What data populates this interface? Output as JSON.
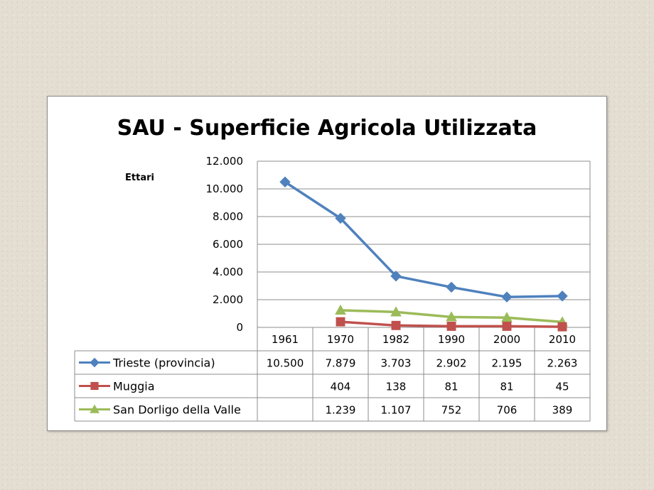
{
  "chart_data": {
    "type": "line",
    "title": "SAU - Superficie Agricola Utilizzata",
    "ylabel": "Ettari",
    "xlabel": "",
    "categories": [
      "1961",
      "1970",
      "1982",
      "1990",
      "2000",
      "2010"
    ],
    "ylim": [
      0,
      12000
    ],
    "yticks": [
      0,
      2000,
      4000,
      6000,
      8000,
      10000,
      12000
    ],
    "ytick_labels": [
      "0",
      "2.000",
      "4.000",
      "6.000",
      "8.000",
      "10.000",
      "12.000"
    ],
    "grid": true,
    "legend": "data-table",
    "series": [
      {
        "name": "Trieste (provincia)",
        "color": "#4f81bd",
        "marker": "diamond",
        "values": [
          10500,
          7879,
          3703,
          2902,
          2195,
          2263
        ],
        "labels": [
          "10.500",
          "7.879",
          "3.703",
          "2.902",
          "2.195",
          "2.263"
        ]
      },
      {
        "name": "Muggia",
        "color": "#c0504d",
        "marker": "square",
        "values": [
          null,
          404,
          138,
          81,
          81,
          45
        ],
        "labels": [
          "",
          "404",
          "138",
          "81",
          "81",
          "45"
        ]
      },
      {
        "name": "San Dorligo della Valle",
        "color": "#9bbb59",
        "marker": "triangle",
        "values": [
          null,
          1239,
          1107,
          752,
          706,
          389
        ],
        "labels": [
          "",
          "1.239",
          "1.107",
          "752",
          "706",
          "389"
        ]
      }
    ]
  }
}
